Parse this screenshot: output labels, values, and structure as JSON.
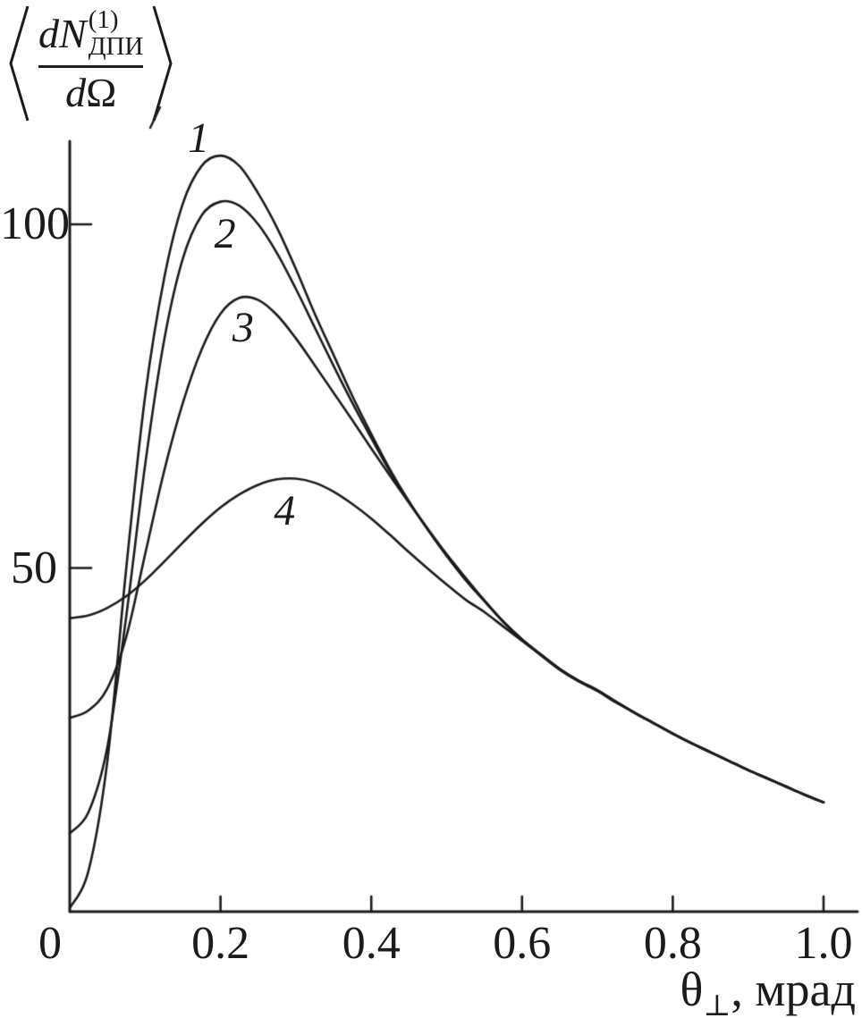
{
  "figure": {
    "background": "#ffffff",
    "ink": "#1b1b1b"
  },
  "y_axis_title": {
    "bracket_left": "⟨",
    "bracket_right": "⟩",
    "numerator_main": "dN",
    "superscript": "(1)",
    "subscript": "ДПИ",
    "denominator_d": "d",
    "denominator_symbol": "Ω"
  },
  "x_axis_title": {
    "symbol": "θ",
    "subscript": "⊥",
    "rest": ", мрад"
  },
  "chart_data": {
    "type": "line",
    "title": "",
    "xlabel": "θ⊥, мрад",
    "ylabel": "⟨dN(1)ДПИ/dΩ⟩",
    "xlim": [
      0,
      1.04
    ],
    "ylim": [
      0,
      112
    ],
    "grid": false,
    "legend_position": "inline-curve-numbers",
    "x_ticks": [
      {
        "value": 0,
        "label": "0"
      },
      {
        "value": 0.2,
        "label": "0.2"
      },
      {
        "value": 0.4,
        "label": "0.4"
      },
      {
        "value": 0.6,
        "label": "0.6"
      },
      {
        "value": 0.8,
        "label": "0.8"
      },
      {
        "value": 1.0,
        "label": "1.0"
      }
    ],
    "y_ticks": [
      {
        "value": 50,
        "label": "50"
      },
      {
        "value": 100,
        "label": "100"
      }
    ],
    "x": [
      0,
      0.025,
      0.05,
      0.075,
      0.1,
      0.125,
      0.15,
      0.175,
      0.2,
      0.225,
      0.25,
      0.275,
      0.3,
      0.325,
      0.35,
      0.375,
      0.4,
      0.425,
      0.45,
      0.475,
      0.5,
      0.525,
      0.55,
      0.575,
      0.6,
      0.625,
      0.65,
      0.675,
      0.7,
      0.725,
      0.75,
      0.775,
      0.8,
      0.825,
      0.85,
      0.875,
      0.9,
      0.925,
      0.95,
      0.975,
      1
    ],
    "series": [
      {
        "name": "1",
        "label_pos": {
          "x": 0.171,
          "y": 112.5
        },
        "values": [
          0.5,
          6,
          22,
          50,
          75,
          92,
          103,
          108.5,
          110,
          108.5,
          104.5,
          99.5,
          93.5,
          87,
          81,
          75,
          69.5,
          64.3,
          59.7,
          55.6,
          51.8,
          48.3,
          45.2,
          42.2,
          39.6,
          37.4,
          35.3,
          33.6,
          32.2,
          30.5,
          28.9,
          27.4,
          25.9,
          24.5,
          23.2,
          21.9,
          20.6,
          19.4,
          18.2,
          17,
          15.9
        ]
      },
      {
        "name": "2",
        "label_pos": {
          "x": 0.206,
          "y": 98.6
        },
        "values": [
          11.4,
          14.5,
          24,
          43,
          65,
          83,
          95,
          101.3,
          103.3,
          102.7,
          100,
          95.8,
          90.6,
          85,
          79.4,
          74,
          68.9,
          64,
          59.6,
          55.6,
          51.8,
          48.3,
          45.2,
          42.2,
          39.6,
          37.4,
          35.3,
          33.6,
          32.2,
          30.5,
          28.9,
          27.4,
          25.9,
          24.5,
          23.2,
          21.9,
          20.6,
          19.4,
          18.2,
          17,
          15.9
        ]
      },
      {
        "name": "3",
        "label_pos": {
          "x": 0.23,
          "y": 84.9
        },
        "values": [
          28.2,
          29.3,
          32.5,
          40,
          52,
          64,
          74,
          81.8,
          87,
          89.3,
          89,
          86.8,
          83.4,
          79.5,
          75.5,
          71.5,
          67.4,
          63.4,
          59.5,
          55.7,
          52,
          48.6,
          45.3,
          42.2,
          39.6,
          37.4,
          35.3,
          33.6,
          32.2,
          30.5,
          28.9,
          27.4,
          25.9,
          24.5,
          23.2,
          21.9,
          20.6,
          19.4,
          18.2,
          17,
          15.9
        ]
      },
      {
        "name": "4",
        "label_pos": {
          "x": 0.285,
          "y": 58.3
        },
        "values": [
          42.7,
          43.1,
          44.2,
          45.9,
          48.2,
          50.9,
          53.7,
          56.4,
          58.8,
          60.7,
          62.1,
          62.9,
          63,
          62.4,
          61.1,
          59.3,
          57.2,
          54.8,
          52.3,
          49.9,
          47.6,
          45.4,
          43.6,
          41.5,
          39.4,
          37.3,
          35.2,
          33.5,
          32.1,
          30.4,
          28.9,
          27.4,
          25.9,
          24.5,
          23.2,
          21.9,
          20.6,
          19.4,
          18.2,
          17,
          15.9
        ]
      }
    ]
  }
}
